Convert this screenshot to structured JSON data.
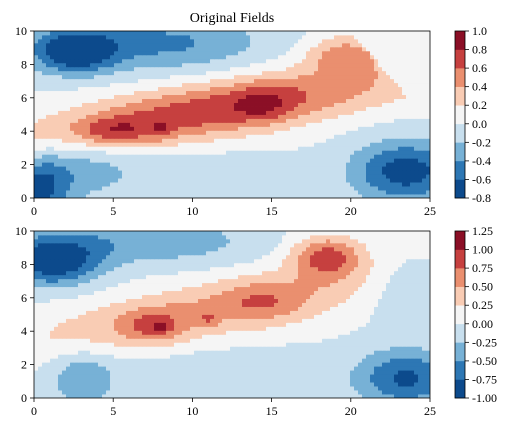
{
  "colors": {
    "levels": [
      "#0c4a8c",
      "#2d77b4",
      "#77b1d6",
      "#c8dfee",
      "#f5f5f5",
      "#f9ccb4",
      "#ea8f6f",
      "#c6403f",
      "#8b0f26"
    ]
  },
  "chart_data": [
    {
      "type": "heatmap",
      "title": "Original Fields",
      "xlabel": "",
      "ylabel": "",
      "xlim": [
        0,
        25
      ],
      "ylim": [
        0,
        10
      ],
      "x_ticks": [
        "0",
        "5",
        "10",
        "15",
        "20",
        "25"
      ],
      "y_ticks": [
        "0",
        "2",
        "4",
        "6",
        "8",
        "10"
      ],
      "colorbar": {
        "ticks": [
          "-0.8",
          "-0.6",
          "-0.4",
          "-0.2",
          "0.0",
          "0.2",
          "0.4",
          "0.6",
          "0.8",
          "1.0"
        ],
        "boundaries": [
          -0.8,
          -0.6,
          -0.4,
          -0.2,
          0.0,
          0.2,
          0.4,
          0.6,
          0.8,
          1.0
        ]
      },
      "features": {
        "ridge_peak": {
          "x": 5,
          "y": 4,
          "value": 0.9
        },
        "upper_right_peak": {
          "x": 20,
          "y": 8.5,
          "value": 0.55
        },
        "upper_left_trough": {
          "x": 3,
          "y": 8.8,
          "value": -0.7
        },
        "lower_right_trough": {
          "x": 23,
          "y": 1.6,
          "value": -0.65
        },
        "lower_left_trough": {
          "x": 0.5,
          "y": 0.5,
          "value": -0.55
        }
      },
      "grid": false
    },
    {
      "type": "heatmap",
      "title": "",
      "xlabel": "",
      "ylabel": "",
      "xlim": [
        0,
        25
      ],
      "ylim": [
        0,
        10
      ],
      "x_ticks": [
        "0",
        "5",
        "10",
        "15",
        "20",
        "25"
      ],
      "y_ticks": [
        "0",
        "2",
        "4",
        "6",
        "8",
        "10"
      ],
      "colorbar": {
        "ticks": [
          "-1.00",
          "-0.75",
          "-0.50",
          "-0.25",
          "0.00",
          "0.25",
          "0.50",
          "0.75",
          "1.00",
          "1.25"
        ],
        "boundaries": [
          -1.0,
          -0.75,
          -0.5,
          -0.25,
          0.0,
          0.25,
          0.5,
          0.75,
          1.0,
          1.25
        ]
      },
      "features": {
        "ridge_peak": {
          "x": 8,
          "y": 4.2,
          "value": 0.95
        },
        "upper_right_peak": {
          "x": 18.5,
          "y": 8.5,
          "value": 0.9
        },
        "upper_left_trough": {
          "x": 0.8,
          "y": 8.0,
          "value": -0.9
        },
        "lower_right_trough": {
          "x": 23,
          "y": 1.2,
          "value": -0.8
        },
        "lower_left_trough": {
          "x": 3,
          "y": 1.2,
          "value": -0.4
        }
      },
      "grid": false
    }
  ]
}
